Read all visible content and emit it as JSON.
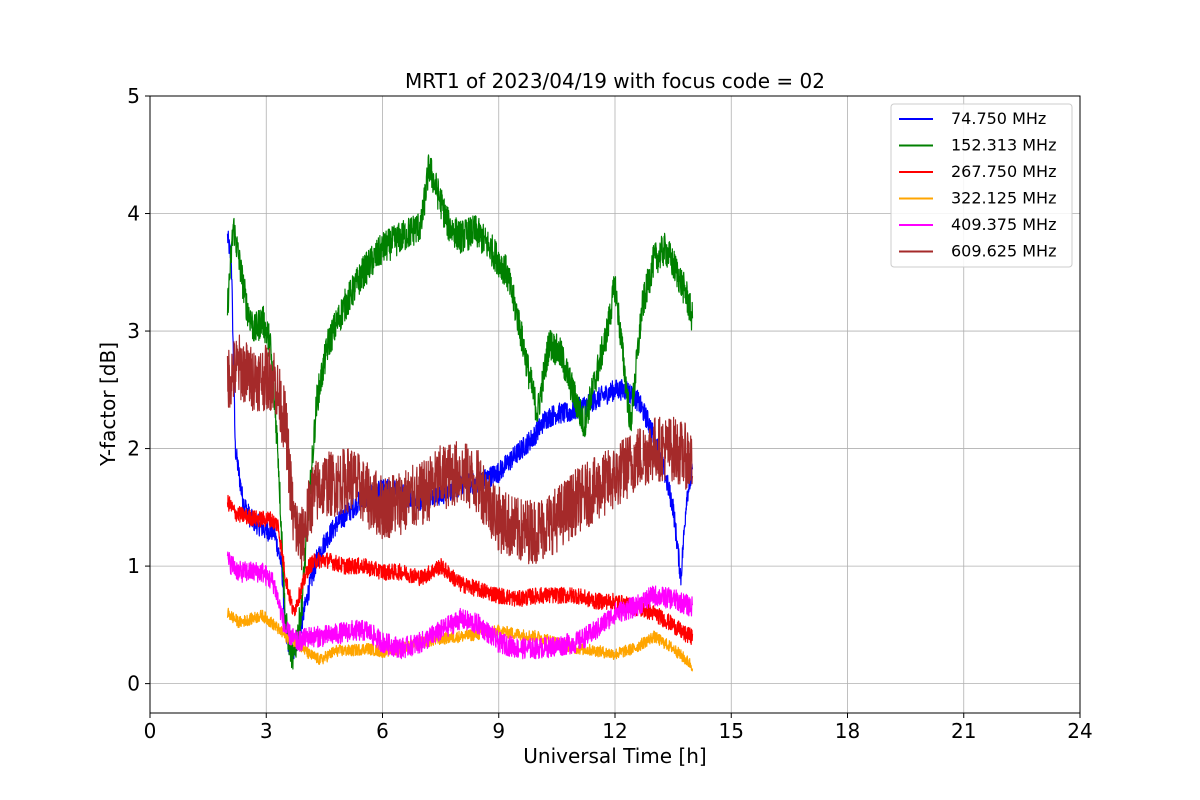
{
  "chart_data": {
    "type": "line",
    "title": "MRT1 of 2023/04/19 with focus code = 02",
    "xlabel": "Universal Time [h]",
    "ylabel": "Y-factor [dB]",
    "xlim": [
      0,
      24
    ],
    "ylim": [
      -0.25,
      5
    ],
    "xticks": [
      0,
      3,
      6,
      9,
      12,
      15,
      18,
      21,
      24
    ],
    "yticks": [
      0,
      1,
      2,
      3,
      4,
      5
    ],
    "grid": true,
    "legend_position": "top-right",
    "series": [
      {
        "name": "74.750 MHz",
        "color": "#0000ff",
        "noise": 0.09,
        "x": [
          2.0,
          2.1,
          2.2,
          2.4,
          2.6,
          2.8,
          3.0,
          3.2,
          3.4,
          3.5,
          3.7,
          3.9,
          4.1,
          4.3,
          4.5,
          4.8,
          5.1,
          5.4,
          5.7,
          6.0,
          6.3,
          6.6,
          6.9,
          7.2,
          7.5,
          7.8,
          8.1,
          8.4,
          8.7,
          9.0,
          9.3,
          9.6,
          9.9,
          10.2,
          10.5,
          10.8,
          11.1,
          11.4,
          11.7,
          12.0,
          12.3,
          12.6,
          12.9,
          13.2,
          13.5,
          13.7,
          13.85,
          14.0
        ],
        "y": [
          3.8,
          3.6,
          2.0,
          1.55,
          1.4,
          1.35,
          1.3,
          1.3,
          1.0,
          0.4,
          0.25,
          0.5,
          0.8,
          1.05,
          1.2,
          1.35,
          1.45,
          1.55,
          1.6,
          1.65,
          1.65,
          1.6,
          1.55,
          1.6,
          1.6,
          1.65,
          1.7,
          1.7,
          1.75,
          1.8,
          1.9,
          2.0,
          2.1,
          2.25,
          2.3,
          2.3,
          2.35,
          2.4,
          2.45,
          2.5,
          2.5,
          2.4,
          2.2,
          1.9,
          1.5,
          0.9,
          1.6,
          1.8
        ]
      },
      {
        "name": "152.313 MHz",
        "color": "#008000",
        "noise": 0.14,
        "x": [
          2.0,
          2.15,
          2.3,
          2.5,
          2.7,
          2.9,
          3.1,
          3.3,
          3.5,
          3.7,
          3.9,
          4.1,
          4.3,
          4.6,
          5.0,
          5.5,
          6.0,
          6.5,
          7.0,
          7.2,
          7.4,
          7.7,
          8.0,
          8.4,
          8.8,
          9.2,
          9.5,
          9.8,
          10.0,
          10.3,
          10.6,
          10.9,
          11.2,
          11.5,
          11.8,
          12.0,
          12.2,
          12.4,
          12.7,
          13.0,
          13.3,
          13.6,
          13.85,
          14.0
        ],
        "y": [
          3.2,
          3.9,
          3.6,
          3.2,
          3.0,
          3.1,
          2.9,
          2.0,
          0.5,
          0.2,
          0.6,
          1.5,
          2.4,
          2.9,
          3.2,
          3.5,
          3.7,
          3.8,
          3.9,
          4.4,
          4.2,
          3.9,
          3.8,
          3.85,
          3.7,
          3.5,
          3.1,
          2.6,
          2.3,
          2.9,
          2.8,
          2.5,
          2.2,
          2.6,
          3.0,
          3.4,
          2.8,
          2.2,
          3.2,
          3.6,
          3.7,
          3.5,
          3.3,
          3.1
        ]
      },
      {
        "name": "267.750 MHz",
        "color": "#ff0000",
        "noise": 0.07,
        "x": [
          2.0,
          2.2,
          2.5,
          2.8,
          3.1,
          3.3,
          3.5,
          3.7,
          3.9,
          4.1,
          4.3,
          4.6,
          5.0,
          5.5,
          6.0,
          6.5,
          7.0,
          7.5,
          8.0,
          8.5,
          9.0,
          9.5,
          10.0,
          10.5,
          11.0,
          11.5,
          12.0,
          12.5,
          13.0,
          13.5,
          13.8,
          14.0
        ],
        "y": [
          1.55,
          1.45,
          1.42,
          1.4,
          1.4,
          1.35,
          0.9,
          0.6,
          0.8,
          1.0,
          1.05,
          1.05,
          1.0,
          1.0,
          0.95,
          0.95,
          0.9,
          1.0,
          0.85,
          0.8,
          0.75,
          0.72,
          0.75,
          0.75,
          0.75,
          0.7,
          0.7,
          0.65,
          0.6,
          0.5,
          0.42,
          0.4
        ]
      },
      {
        "name": "322.125 MHz",
        "color": "#ffa500",
        "noise": 0.05,
        "x": [
          2.0,
          2.3,
          2.6,
          2.9,
          3.2,
          3.5,
          3.8,
          4.1,
          4.4,
          4.8,
          5.2,
          5.6,
          6.0,
          6.5,
          7.0,
          7.5,
          8.0,
          8.5,
          9.0,
          9.5,
          10.0,
          10.5,
          11.0,
          11.5,
          12.0,
          12.5,
          13.0,
          13.5,
          14.0
        ],
        "y": [
          0.6,
          0.52,
          0.55,
          0.58,
          0.5,
          0.4,
          0.35,
          0.25,
          0.2,
          0.28,
          0.28,
          0.3,
          0.27,
          0.3,
          0.35,
          0.38,
          0.4,
          0.42,
          0.45,
          0.42,
          0.4,
          0.35,
          0.3,
          0.28,
          0.25,
          0.3,
          0.4,
          0.3,
          0.15
        ]
      },
      {
        "name": "409.375 MHz",
        "color": "#ff00ff",
        "noise": 0.09,
        "x": [
          2.0,
          2.3,
          2.6,
          2.9,
          3.2,
          3.5,
          3.8,
          4.1,
          4.4,
          4.8,
          5.2,
          5.6,
          6.0,
          6.5,
          7.0,
          7.5,
          8.0,
          8.5,
          9.0,
          9.5,
          10.0,
          10.5,
          11.0,
          11.5,
          12.0,
          12.5,
          13.0,
          13.5,
          14.0
        ],
        "y": [
          1.05,
          0.95,
          0.95,
          0.95,
          0.85,
          0.45,
          0.35,
          0.4,
          0.4,
          0.42,
          0.45,
          0.45,
          0.35,
          0.3,
          0.35,
          0.45,
          0.55,
          0.5,
          0.35,
          0.3,
          0.3,
          0.32,
          0.35,
          0.45,
          0.6,
          0.65,
          0.75,
          0.72,
          0.65
        ]
      },
      {
        "name": "609.625 MHz",
        "color": "#a52a2a",
        "noise": 0.28,
        "x": [
          2.0,
          2.3,
          2.6,
          2.9,
          3.2,
          3.5,
          3.7,
          3.9,
          4.2,
          4.5,
          4.8,
          5.2,
          5.6,
          6.0,
          6.5,
          7.0,
          7.5,
          8.0,
          8.5,
          9.0,
          9.5,
          10.0,
          10.5,
          11.0,
          11.5,
          12.0,
          12.5,
          13.0,
          13.5,
          14.0
        ],
        "y": [
          2.6,
          2.7,
          2.6,
          2.6,
          2.6,
          2.2,
          1.4,
          1.2,
          1.6,
          1.7,
          1.7,
          1.75,
          1.6,
          1.5,
          1.55,
          1.6,
          1.75,
          1.8,
          1.7,
          1.4,
          1.3,
          1.3,
          1.4,
          1.55,
          1.65,
          1.75,
          1.9,
          2.0,
          2.0,
          1.9
        ]
      }
    ]
  }
}
